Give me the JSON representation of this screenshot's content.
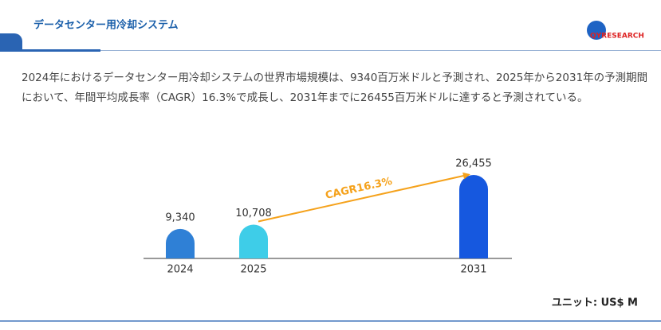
{
  "header": {
    "title": "データセンター用冷却システム",
    "logo": "QYRESEARCH"
  },
  "description": "2024年におけるデータセンター用冷却システムの世界市場規模は、9340百万米ドルと予測され、2025年から2031年の予測期間において、年間平均成長率（CAGR）16.3%で成長し、2031年までに26455百万米ドルに達すると予測されている。",
  "chart_data": {
    "type": "bar",
    "categories": [
      "2024",
      "2025",
      null,
      null,
      "2031"
    ],
    "values": [
      9340,
      10708,
      null,
      null,
      26455
    ],
    "value_labels": [
      "9,340",
      "10,708",
      null,
      null,
      "26,455"
    ],
    "colors": [
      "#2f80d6",
      "#3ecde8",
      null,
      null,
      "#1658df"
    ],
    "annotation": "CAGR16.3%",
    "annotation_color": "#f5a21c",
    "unit": "ユニット: US$ M"
  }
}
